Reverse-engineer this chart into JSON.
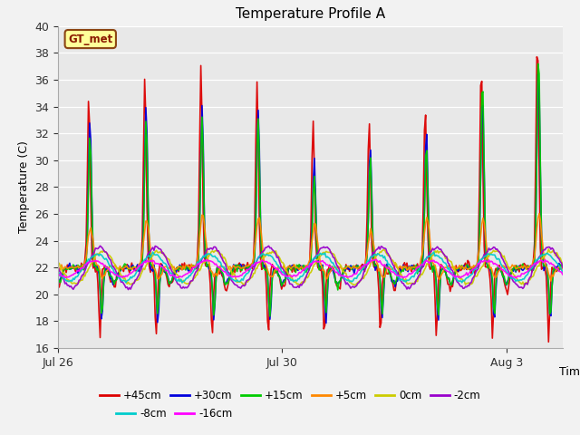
{
  "title": "Temperature Profile A",
  "xlabel": "Time",
  "ylabel": "Temperature (C)",
  "ylim": [
    16,
    40
  ],
  "annotation": "GT_met",
  "x_ticks_labels": [
    "Jul 26",
    "Jul 30",
    "Aug 3"
  ],
  "x_ticks_pos": [
    0,
    4,
    8
  ],
  "background_color": "#e8e8e8",
  "fig_facecolor": "#f2f2f2",
  "series": [
    {
      "label": "+45cm",
      "color": "#dd0000",
      "lw": 1.2
    },
    {
      "label": "+30cm",
      "color": "#0000dd",
      "lw": 1.2
    },
    {
      "label": "+15cm",
      "color": "#00cc00",
      "lw": 1.2
    },
    {
      "label": "+5cm",
      "color": "#ff8800",
      "lw": 1.2
    },
    {
      "label": "0cm",
      "color": "#cccc00",
      "lw": 1.2
    },
    {
      "label": "-2cm",
      "color": "#9900cc",
      "lw": 1.2
    },
    {
      "label": "-8cm",
      "color": "#00cccc",
      "lw": 1.2
    },
    {
      "label": "-16cm",
      "color": "#ff00ff",
      "lw": 1.2
    }
  ],
  "title_fontsize": 11,
  "tick_fontsize": 9
}
